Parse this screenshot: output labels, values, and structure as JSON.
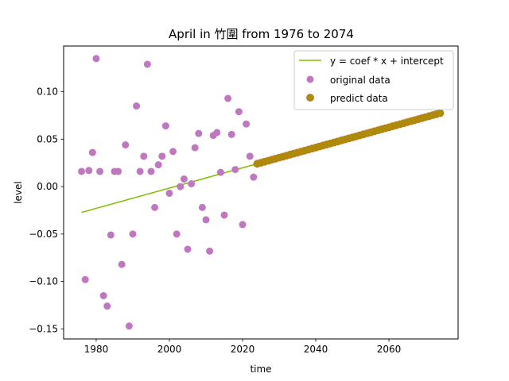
{
  "chart_data": {
    "type": "scatter",
    "title": "April in 竹圍 from 1976 to 2074",
    "xlabel": "time",
    "ylabel": "level",
    "xlim": [
      1971.1,
      2078.9
    ],
    "ylim": [
      -0.1606,
      0.1482
    ],
    "xticks": [
      1980,
      2000,
      2020,
      2040,
      2060
    ],
    "xtick_labels": [
      "1980",
      "2000",
      "2020",
      "2040",
      "2060"
    ],
    "yticks": [
      -0.15,
      -0.1,
      -0.05,
      0.0,
      0.05,
      0.1
    ],
    "ytick_labels": [
      "−0.15",
      "−0.10",
      "−0.05",
      "0.00",
      "0.05",
      "0.10"
    ],
    "grid": false,
    "legend_position": "top-right",
    "colors": {
      "fit_line": "#7fbf00",
      "original": "#bf77bf",
      "predict": "#a89000",
      "predict_edge": "#c2742a"
    },
    "series": [
      {
        "name": "y = coef * x + intercept",
        "kind": "line",
        "x": [
          1976,
          2074
        ],
        "y": [
          -0.0272,
          0.0775
        ]
      },
      {
        "name": "original data",
        "kind": "scatter",
        "x": [
          1976,
          1977,
          1978,
          1979,
          1980,
          1981,
          1982,
          1983,
          1984,
          1985,
          1986,
          1987,
          1988,
          1989,
          1990,
          1991,
          1992,
          1993,
          1994,
          1995,
          1996,
          1997,
          1998,
          1999,
          2000,
          2001,
          2002,
          2003,
          2004,
          2005,
          2006,
          2007,
          2008,
          2009,
          2010,
          2011,
          2012,
          2013,
          2014,
          2015,
          2016,
          2017,
          2018,
          2019,
          2020,
          2021,
          2022,
          2023
        ],
        "y": [
          0.016,
          -0.098,
          0.017,
          0.036,
          0.135,
          0.016,
          -0.115,
          -0.126,
          -0.051,
          0.016,
          0.016,
          -0.082,
          0.044,
          -0.147,
          -0.05,
          0.085,
          0.016,
          0.032,
          0.129,
          0.016,
          -0.022,
          0.023,
          0.032,
          0.064,
          -0.007,
          0.037,
          -0.05,
          0.0,
          0.008,
          -0.066,
          0.003,
          0.041,
          0.056,
          -0.022,
          -0.035,
          -0.068,
          0.054,
          0.057,
          0.015,
          -0.03,
          0.093,
          0.055,
          0.018,
          0.079,
          -0.04,
          0.066,
          0.032,
          0.01
        ]
      },
      {
        "name": "predict data",
        "kind": "scatter",
        "x_start": 2024,
        "x_end": 2074,
        "line_ref": "y = coef * x + intercept"
      }
    ]
  }
}
